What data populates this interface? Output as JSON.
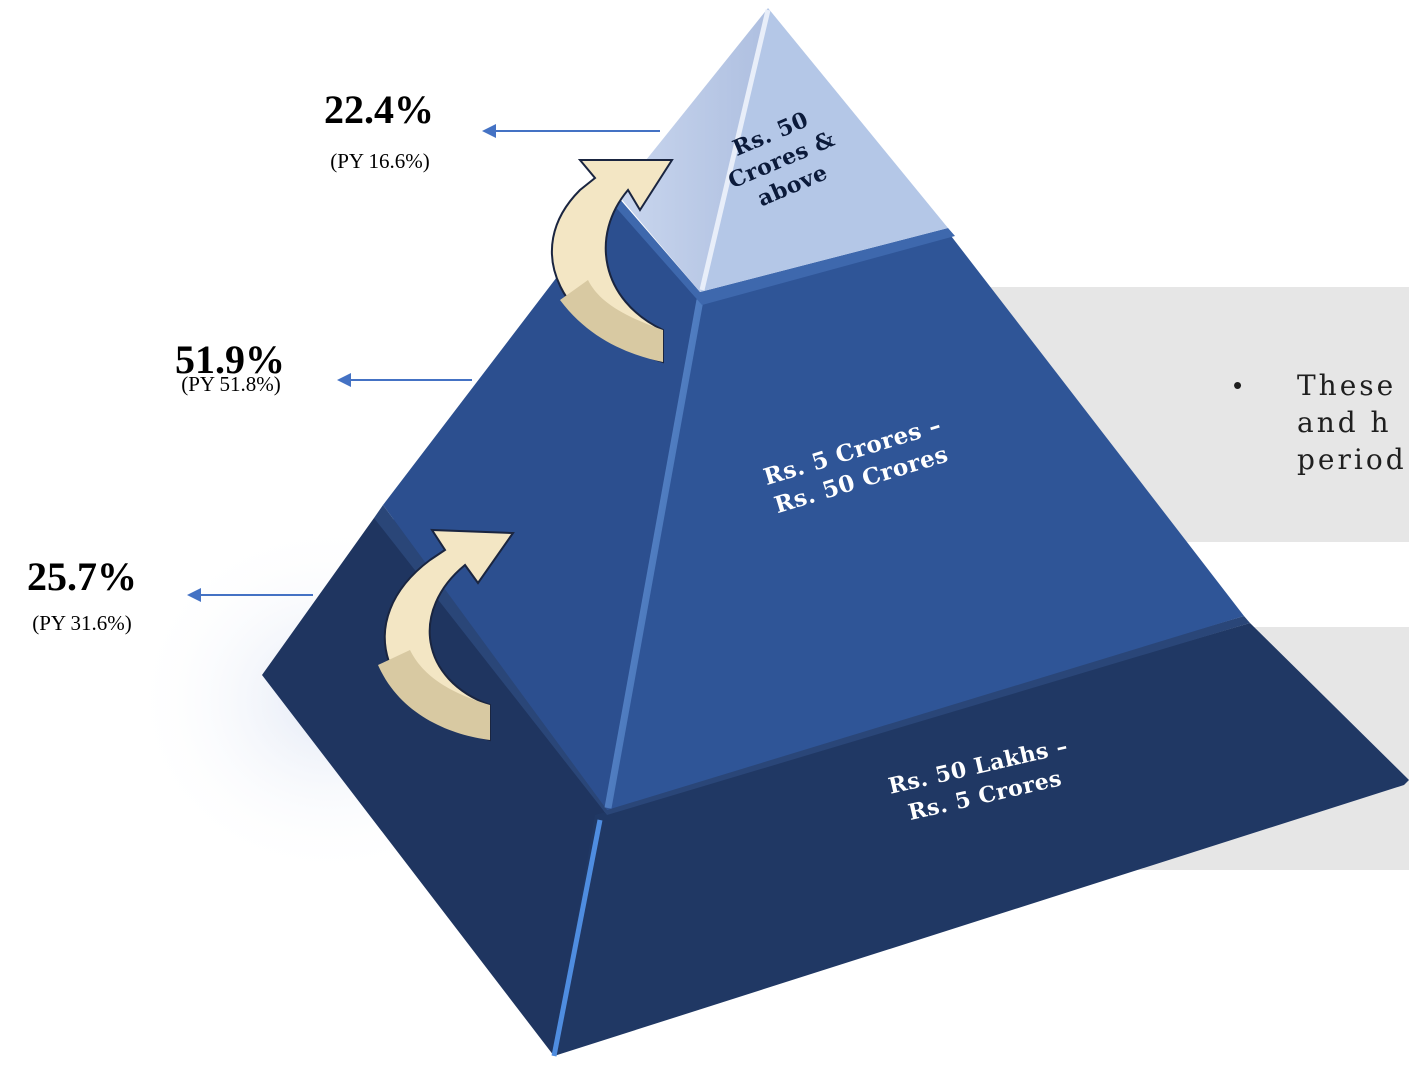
{
  "tiers": [
    {
      "label_line1": "Rs. 50",
      "label_line2": "Crores &",
      "label_line3": "above",
      "percent": "22.4%",
      "prior_year": "(PY 16.6%)"
    },
    {
      "label_line1": "Rs. 5 Crores –",
      "label_line2": "Rs. 50 Crores",
      "percent": "51.9%",
      "prior_year": "(PY 51.8%)"
    },
    {
      "label_line1": "Rs. 50 Lakhs –",
      "label_line2": "Rs. 5 Crores",
      "percent": "25.7%",
      "prior_year": "(PY 31.6%)"
    }
  ],
  "side_note": {
    "bullet": "•",
    "line1": "These",
    "line2": "and h",
    "line3": "period"
  },
  "colors": {
    "top_tier": "#b4c7e7",
    "middle_tier": "#2f5597",
    "bottom_tier": "#203864",
    "arrow_fill": "#f3e6c4",
    "pointer_arrow": "#4472c4",
    "panel": "#e6e6e6"
  }
}
